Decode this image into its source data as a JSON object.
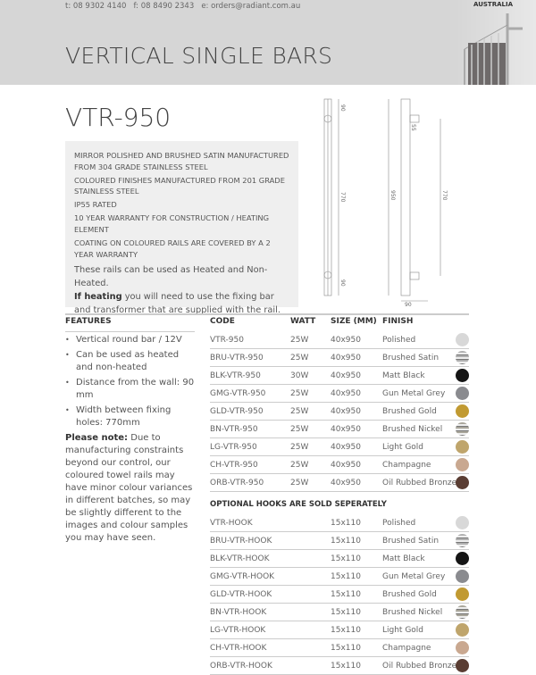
{
  "header": {
    "contact": "t: 08 9302 4140   f: 08 8490 2343   e: orders@radiant.com.au",
    "title": "VERTICAL SINGLE BARS",
    "brand": "AUSTRALIA"
  },
  "product": {
    "model": "VTR-950",
    "specs": [
      "MIRROR POLISHED AND BRUSHED SATIN MANUFACTURED FROM 304 GRADE STAINLESS STEEL",
      "COLOURED FINISHES MANUFACTURED FROM 201 GRADE STAINLESS STEEL",
      "IP55 RATED",
      "10 YEAR WARRANTY FOR CONSTRUCTION / HEATING ELEMENT",
      "COATING ON COLOURED RAILS ARE COVERED BY A 2 YEAR WARRANTY"
    ],
    "heated_note": "These rails can be used as Heated and Non-Heated.",
    "heating_bold": "If heating",
    "heating_rest": " you will need to use the fixing bar and transformer that are supplied with the rail."
  },
  "drawing": {
    "dims": [
      "90",
      "770",
      "90",
      "950",
      "55",
      "770",
      "90"
    ]
  },
  "features": {
    "heading": "FEATURES",
    "items": [
      "Vertical round bar / 12V",
      "Can be used as heated and non-heated",
      "Distance from the wall: 90 mm",
      "Width between fixing holes: 770mm"
    ],
    "note_bold": "Please note:",
    "note_rest": " Due to manufacturing constraints beyond our control, our coloured towel rails may have minor colour variances in different batches, so may be slightly different to the images and colour samples you may have seen."
  },
  "table": {
    "headers": [
      "CODE",
      "WATT",
      "SIZE (MM)",
      "FINISH"
    ],
    "rows": [
      {
        "code": "VTR-950",
        "watt": "25W",
        "size": "40x950",
        "finish": "Polished",
        "color": "#d8d8d8"
      },
      {
        "code": "BRU-VTR-950",
        "watt": "25W",
        "size": "40x950",
        "finish": "Brushed Satin",
        "color": "#b0b0b0"
      },
      {
        "code": "BLK-VTR-950",
        "watt": "30W",
        "size": "40x950",
        "finish": "Matt Black",
        "color": "#151515"
      },
      {
        "code": "GMG-VTR-950",
        "watt": "25W",
        "size": "40x950",
        "finish": "Gun Metal Grey",
        "color": "#8a8b8f"
      },
      {
        "code": "GLD-VTR-950",
        "watt": "25W",
        "size": "40x950",
        "finish": "Brushed Gold",
        "color": "#c19a32"
      },
      {
        "code": "BN-VTR-950",
        "watt": "25W",
        "size": "40x950",
        "finish": "Brushed Nickel",
        "color": "#a8a59a"
      },
      {
        "code": "LG-VTR-950",
        "watt": "25W",
        "size": "40x950",
        "finish": "Light Gold",
        "color": "#bfa56c"
      },
      {
        "code": "CH-VTR-950",
        "watt": "25W",
        "size": "40x950",
        "finish": "Champagne",
        "color": "#c9a890"
      },
      {
        "code": "ORB-VTR-950",
        "watt": "25W",
        "size": "40x950",
        "finish": "Oil Rubbed Bronze",
        "color": "#5a3d33"
      }
    ]
  },
  "hooks": {
    "title": "OPTIONAL HOOKS ARE SOLD SEPERATELY",
    "rows": [
      {
        "code": "VTR-HOOK",
        "size": "15x110",
        "finish": "Polished",
        "color": "#d8d8d8"
      },
      {
        "code": "BRU-VTR-HOOK",
        "size": "15x110",
        "finish": "Brushed Satin",
        "color": "#b0b0b0"
      },
      {
        "code": "BLK-VTR-HOOK",
        "size": "15x110",
        "finish": "Matt Black",
        "color": "#151515"
      },
      {
        "code": "GMG-VTR-HOOK",
        "size": "15x110",
        "finish": "Gun Metal Grey",
        "color": "#8a8b8f"
      },
      {
        "code": "GLD-VTR-HOOK",
        "size": "15x110",
        "finish": "Brushed Gold",
        "color": "#c19a32"
      },
      {
        "code": "BN-VTR-HOOK",
        "size": "15x110",
        "finish": "Brushed Nickel",
        "color": "#a8a59a"
      },
      {
        "code": "LG-VTR-HOOK",
        "size": "15x110",
        "finish": "Light Gold",
        "color": "#bfa56c"
      },
      {
        "code": "CH-VTR-HOOK",
        "size": "15x110",
        "finish": "Champagne",
        "color": "#c9a890"
      },
      {
        "code": "ORB-VTR-HOOK",
        "size": "15x110",
        "finish": "Oil Rubbed Bronze",
        "color": "#5a3d33"
      }
    ]
  }
}
